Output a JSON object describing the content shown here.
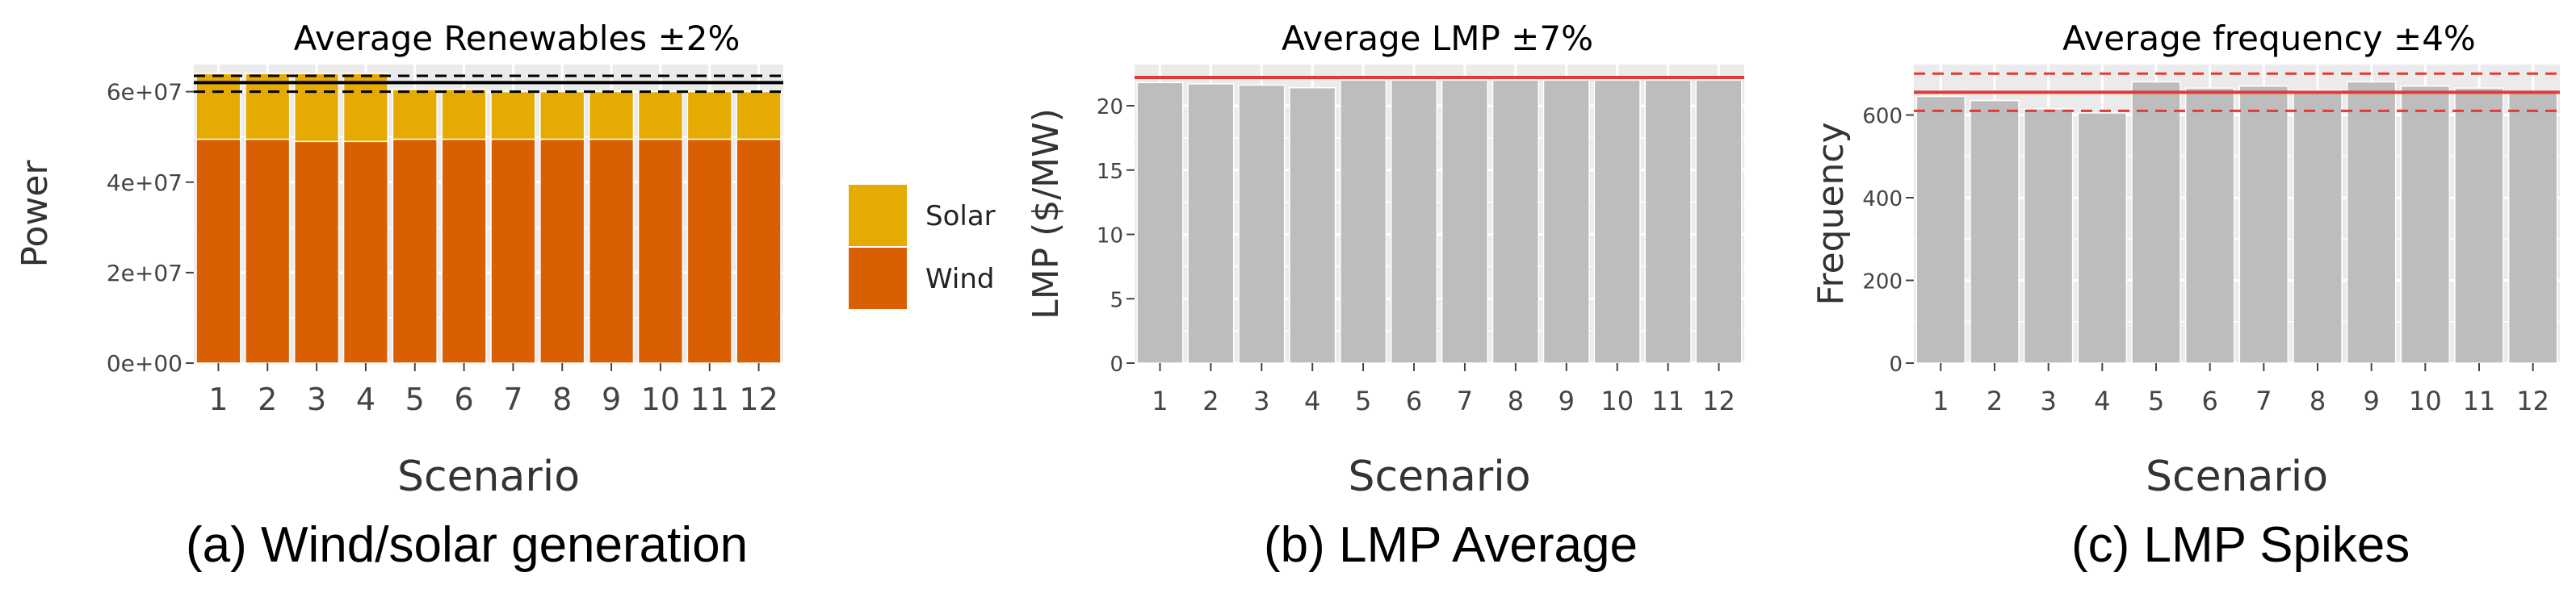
{
  "panels": [
    {
      "caption": "(a) Wind/solar generation",
      "chart_data": {
        "type": "bar",
        "stacked": true,
        "title": "Average Renewables ±2%",
        "xlabel": "Scenario",
        "ylabel": "Power",
        "categories": [
          "1",
          "2",
          "3",
          "4",
          "5",
          "6",
          "7",
          "8",
          "9",
          "10",
          "11",
          "12"
        ],
        "series": [
          {
            "name": "Wind",
            "color": "#d95f02",
            "values": [
              49500000.0,
              49500000.0,
              49000000.0,
              49000000.0,
              49500000.0,
              49500000.0,
              49500000.0,
              49500000.0,
              49500000.0,
              49500000.0,
              49500000.0,
              49500000.0
            ]
          },
          {
            "name": "Solar",
            "color": "#e6ab02",
            "values": [
              14500000.0,
              14500000.0,
              15000000.0,
              15000000.0,
              11000000.0,
              11000000.0,
              10500000.0,
              10500000.0,
              10500000.0,
              10500000.0,
              10500000.0,
              10500000.0
            ]
          }
        ],
        "yticks": [
          "0e+00",
          "2e+07",
          "4e+07",
          "6e+07"
        ],
        "ytick_values": [
          0,
          20000000.0,
          40000000.0,
          60000000.0
        ],
        "ylim": [
          0,
          66000000.0
        ],
        "reference_line": 62000000.0,
        "band": [
          60000000.0,
          63500000.0
        ],
        "legend_position": "right",
        "grid": true
      }
    },
    {
      "caption": "(b) LMP Average",
      "chart_data": {
        "type": "bar",
        "title": "Average LMP ±7%",
        "xlabel": "Scenario",
        "ylabel": "LMP ($/MW)",
        "categories": [
          "1",
          "2",
          "3",
          "4",
          "5",
          "6",
          "7",
          "8",
          "9",
          "10",
          "11",
          "12"
        ],
        "values": [
          21.8,
          21.7,
          21.6,
          21.4,
          22.0,
          22.0,
          22.0,
          22.0,
          22.0,
          22.0,
          22.0,
          22.0
        ],
        "yticks": [
          "0",
          "5",
          "10",
          "15",
          "20"
        ],
        "ytick_values": [
          0,
          5,
          10,
          15,
          20
        ],
        "ylim": [
          0,
          23.2
        ],
        "reference_line": 22.2,
        "grid": true
      }
    },
    {
      "caption": "(c) LMP Spikes",
      "chart_data": {
        "type": "bar",
        "title": "Average frequency ±4%",
        "xlabel": "Scenario",
        "ylabel": "Frequency",
        "categories": [
          "1",
          "2",
          "3",
          "4",
          "5",
          "6",
          "7",
          "8",
          "9",
          "10",
          "11",
          "12"
        ],
        "values": [
          645,
          635,
          615,
          605,
          680,
          665,
          670,
          660,
          680,
          670,
          665,
          655
        ],
        "yticks": [
          "0",
          "200",
          "400",
          "600"
        ],
        "ytick_values": [
          0,
          200,
          400,
          600
        ],
        "ylim": [
          0,
          722
        ],
        "reference_line": 655,
        "band": [
          610,
          700
        ],
        "grid": true
      }
    }
  ],
  "colors": {
    "panel_bg": "#ebebeb",
    "grid": "#ffffff",
    "bar_gray": "#bdbdbd",
    "ref_red": "#e53935",
    "ref_black": "#000000"
  }
}
